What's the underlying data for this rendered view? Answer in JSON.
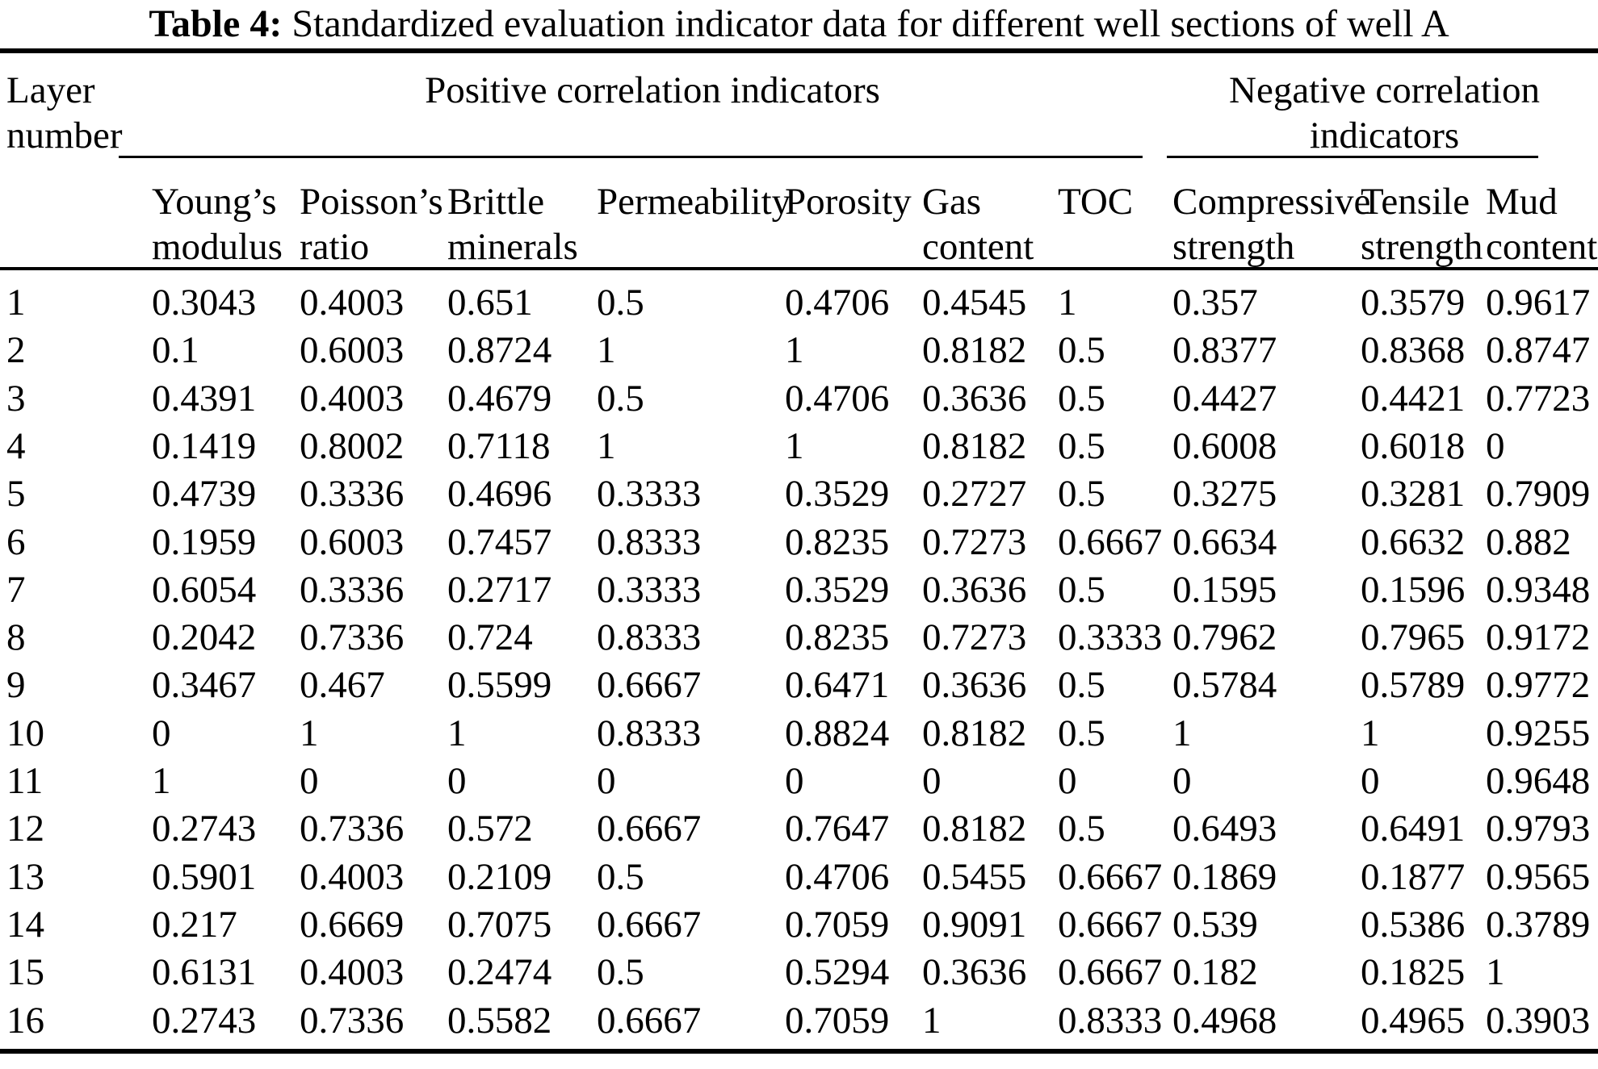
{
  "caption": {
    "label": "Table 4:",
    "text": "Standardized evaluation indicator data for different well sections of well A"
  },
  "table": {
    "layer_header": {
      "l1": "Layer",
      "l2": "number"
    },
    "groups": {
      "positive": "Positive correlation indicators",
      "negative_l1": "Negative correlation",
      "negative_l2": "indicators"
    },
    "columns": [
      {
        "l1": "Young’s",
        "l2": "modulus"
      },
      {
        "l1": "Poisson’s",
        "l2": "ratio"
      },
      {
        "l1": "Brittle",
        "l2": "minerals"
      },
      {
        "l1": "Permeability",
        "l2": ""
      },
      {
        "l1": "Porosity",
        "l2": ""
      },
      {
        "l1": "Gas",
        "l2": "content"
      },
      {
        "l1": "TOC",
        "l2": ""
      },
      {
        "l1": "Compressive",
        "l2": "strength"
      },
      {
        "l1": "Tensile",
        "l2": "strength"
      },
      {
        "l1": "Mud",
        "l2": "content"
      }
    ],
    "rows": [
      [
        "1",
        "0.3043",
        "0.4003",
        "0.651",
        "0.5",
        "0.4706",
        "0.4545",
        "1",
        "0.357",
        "0.3579",
        "0.9617"
      ],
      [
        "2",
        "0.1",
        "0.6003",
        "0.8724",
        "1",
        "1",
        "0.8182",
        "0.5",
        "0.8377",
        "0.8368",
        "0.8747"
      ],
      [
        "3",
        "0.4391",
        "0.4003",
        "0.4679",
        "0.5",
        "0.4706",
        "0.3636",
        "0.5",
        "0.4427",
        "0.4421",
        "0.7723"
      ],
      [
        "4",
        "0.1419",
        "0.8002",
        "0.7118",
        "1",
        "1",
        "0.8182",
        "0.5",
        "0.6008",
        "0.6018",
        "0"
      ],
      [
        "5",
        "0.4739",
        "0.3336",
        "0.4696",
        "0.3333",
        "0.3529",
        "0.2727",
        "0.5",
        "0.3275",
        "0.3281",
        "0.7909"
      ],
      [
        "6",
        "0.1959",
        "0.6003",
        "0.7457",
        "0.8333",
        "0.8235",
        "0.7273",
        "0.6667",
        "0.6634",
        "0.6632",
        "0.882"
      ],
      [
        "7",
        "0.6054",
        "0.3336",
        "0.2717",
        "0.3333",
        "0.3529",
        "0.3636",
        "0.5",
        "0.1595",
        "0.1596",
        "0.9348"
      ],
      [
        "8",
        "0.2042",
        "0.7336",
        "0.724",
        "0.8333",
        "0.8235",
        "0.7273",
        "0.3333",
        "0.7962",
        "0.7965",
        "0.9172"
      ],
      [
        "9",
        "0.3467",
        "0.467",
        "0.5599",
        "0.6667",
        "0.6471",
        "0.3636",
        "0.5",
        "0.5784",
        "0.5789",
        "0.9772"
      ],
      [
        "10",
        "0",
        "1",
        "1",
        "0.8333",
        "0.8824",
        "0.8182",
        "0.5",
        "1",
        "1",
        "0.9255"
      ],
      [
        "11",
        "1",
        "0",
        "0",
        "0",
        "0",
        "0",
        "0",
        "0",
        "0",
        "0.9648"
      ],
      [
        "12",
        "0.2743",
        "0.7336",
        "0.572",
        "0.6667",
        "0.7647",
        "0.8182",
        "0.5",
        "0.6493",
        "0.6491",
        "0.9793"
      ],
      [
        "13",
        "0.5901",
        "0.4003",
        "0.2109",
        "0.5",
        "0.4706",
        "0.5455",
        "0.6667",
        "0.1869",
        "0.1877",
        "0.9565"
      ],
      [
        "14",
        "0.217",
        "0.6669",
        "0.7075",
        "0.6667",
        "0.7059",
        "0.9091",
        "0.6667",
        "0.539",
        "0.5386",
        "0.3789"
      ],
      [
        "15",
        "0.6131",
        "0.4003",
        "0.2474",
        "0.5",
        "0.5294",
        "0.3636",
        "0.6667",
        "0.182",
        "0.1825",
        "1"
      ],
      [
        "16",
        "0.2743",
        "0.7336",
        "0.5582",
        "0.6667",
        "0.7059",
        "1",
        "0.8333",
        "0.4968",
        "0.4965",
        "0.3903"
      ]
    ]
  }
}
